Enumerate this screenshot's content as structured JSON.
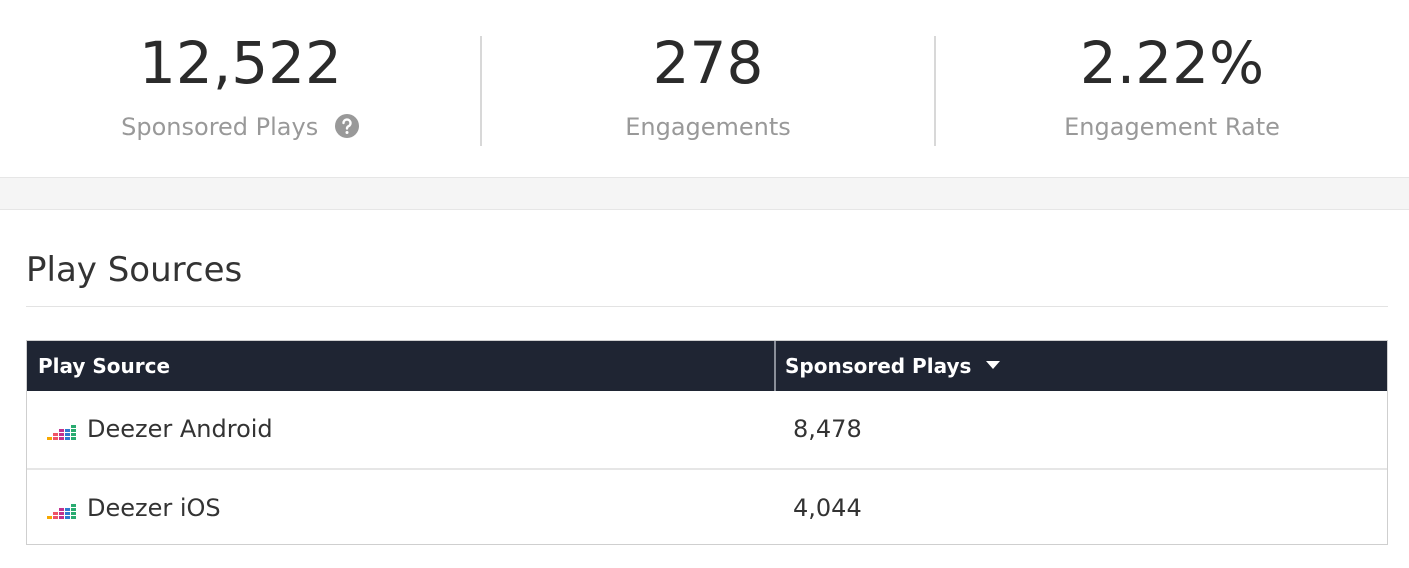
{
  "stats": [
    {
      "value": "12,522",
      "label": "Sponsored Plays"
    },
    {
      "value": "278",
      "label": "Engagements"
    },
    {
      "value": "2.22%",
      "label": "Engagement Rate"
    }
  ],
  "section": {
    "title": "Play Sources"
  },
  "table": {
    "columns": [
      "Play Source",
      "Sponsored Plays"
    ],
    "rows": [
      [
        "Deezer Android",
        "8,478"
      ],
      [
        "Deezer iOS",
        "4,044"
      ]
    ]
  }
}
